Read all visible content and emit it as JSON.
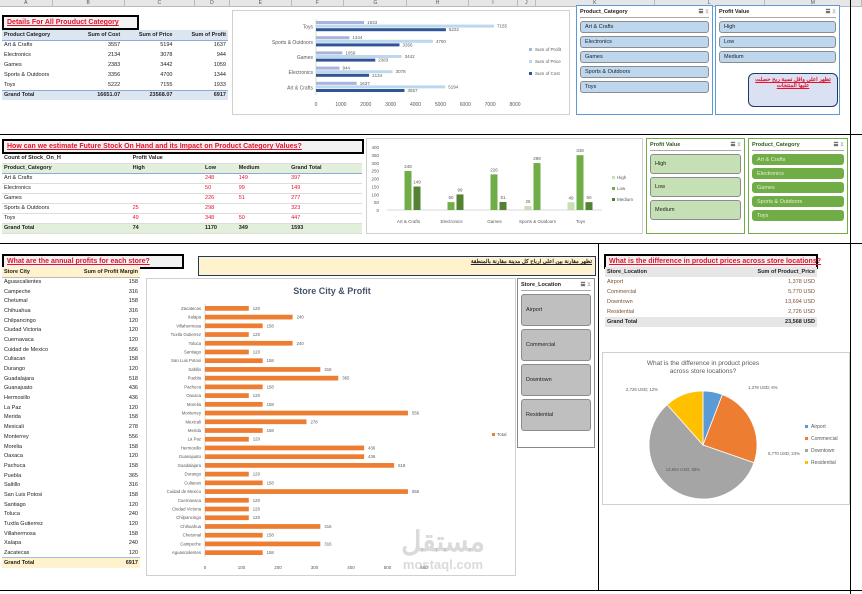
{
  "columns": [
    "A",
    "B",
    "C",
    "D",
    "E",
    "F",
    "G",
    "H",
    "I",
    "J",
    "K",
    "L",
    "M"
  ],
  "section1": {
    "title": "Details For All Prouduct Category",
    "headers": [
      "Product Category",
      "Sum of Cost",
      "Sum of Price",
      "Sum of Profit"
    ],
    "rows": [
      [
        "Art & Crafts",
        "3557",
        "5194",
        "1637"
      ],
      [
        "Electronics",
        "2134",
        "3078",
        "944"
      ],
      [
        "Games",
        "2383",
        "3442",
        "1059"
      ],
      [
        "Sports & Outdoors",
        "3356",
        "4700",
        "1344"
      ],
      [
        "Toys",
        "5222",
        "7155",
        "1933"
      ]
    ],
    "grand_total": [
      "Grand Total",
      "16651.07",
      "23568.07",
      "6917"
    ],
    "slicer_category": {
      "title": "Product_Category",
      "items": [
        "Art & Crafts",
        "Electronics",
        "Games",
        "Sports & Outdoors",
        "Toys"
      ]
    },
    "slicer_profit": {
      "title": "Profit Value",
      "items": [
        "High",
        "Low",
        "Medium"
      ]
    },
    "callout": "تظهر اعلى واقل نسبة ربح حصلت عليها المنتجات"
  },
  "section2": {
    "title": "How can we estimate Future Stock On Hand and its Impact on Product Category Values?",
    "filter_row": [
      "Count of Stock_On_H",
      "Profit Value"
    ],
    "headers": [
      "Product_Category",
      "High",
      "Low",
      "Medium",
      "Grand Total"
    ],
    "rows": [
      [
        "Art & Crafts",
        "",
        "248",
        "149",
        "397"
      ],
      [
        "Electronics",
        "",
        "50",
        "99",
        "149"
      ],
      [
        "Games",
        "",
        "226",
        "51",
        "277"
      ],
      [
        "Sports & Outdoors",
        "25",
        "298",
        "",
        "323"
      ],
      [
        "Toys",
        "49",
        "348",
        "50",
        "447"
      ]
    ],
    "grand_total": [
      "Grand Total",
      "74",
      "1170",
      "349",
      "1593"
    ],
    "slicer_profit": {
      "title": "Profit Value",
      "items": [
        "High",
        "Low",
        "Medium"
      ]
    },
    "slicer_category": {
      "title": "Product_Category",
      "items": [
        "Art & Crafts",
        "Electronics",
        "Games",
        "Sports & Outdoors",
        "Toys"
      ]
    }
  },
  "section3": {
    "title": "What are the annual profits for each store?",
    "banner": "تظهر مقارنة بين اعلى ارباح كل مدينة مقارنة بالمنطقة",
    "headers": [
      "Store City",
      "Sum of Profit Margin"
    ],
    "rows": [
      [
        "Aguascalientes",
        "158"
      ],
      [
        "Campeche",
        "316"
      ],
      [
        "Chetumal",
        "158"
      ],
      [
        "Chihuahua",
        "316"
      ],
      [
        "Chilpancingo",
        "120"
      ],
      [
        "Ciudad Victoria",
        "120"
      ],
      [
        "Cuernavaca",
        "120"
      ],
      [
        "Cuidad de Mexico",
        "556"
      ],
      [
        "Culiacan",
        "158"
      ],
      [
        "Durango",
        "120"
      ],
      [
        "Guadalajara",
        "518"
      ],
      [
        "Guanajuato",
        "436"
      ],
      [
        "Hermosillo",
        "436"
      ],
      [
        "La Paz",
        "120"
      ],
      [
        "Merida",
        "158"
      ],
      [
        "Mexicali",
        "278"
      ],
      [
        "Monterrey",
        "556"
      ],
      [
        "Morelia",
        "158"
      ],
      [
        "Oaxaca",
        "120"
      ],
      [
        "Pachuca",
        "158"
      ],
      [
        "Puebla",
        "365"
      ],
      [
        "Saltillo",
        "316"
      ],
      [
        "San Luis Potosi",
        "158"
      ],
      [
        "Santiago",
        "120"
      ],
      [
        "Toluca",
        "240"
      ],
      [
        "Tuxtla Gutierrez",
        "120"
      ],
      [
        "Villahermosa",
        "158"
      ],
      [
        "Xalapa",
        "240"
      ],
      [
        "Zacatecas",
        "120"
      ]
    ],
    "grand_total": [
      "Grand Total",
      "6917"
    ],
    "slicer_location": {
      "title": "Store_Location",
      "items": [
        "Airport",
        "Commercial",
        "Downtown",
        "Residential"
      ]
    }
  },
  "section4": {
    "title": "What is the difference in product prices across store locations?",
    "headers": [
      "Store_Location",
      "Sum of Product_Price"
    ],
    "rows": [
      [
        "Airport",
        "1,378 USD"
      ],
      [
        "Commercial",
        "5,770 USD"
      ],
      [
        "Downtown",
        "13,694 USD"
      ],
      [
        "Residential",
        "2,726 USD"
      ]
    ],
    "grand_total": [
      "Grand Total",
      "23,568 USD"
    ]
  },
  "watermark": {
    "arabic": "مستقل",
    "latin": "mostaql.com"
  },
  "colors": {
    "profit": "#a9b4dd",
    "price": "#bdd7ee",
    "cost": "#2f5597",
    "high": "#c5e0b4",
    "low": "#70ad47",
    "medium": "#548235",
    "orange": "#ed7d31",
    "airport": "#5b9bd5",
    "commercial": "#ed7d31",
    "downtown": "#a5a5a5",
    "residential": "#ffc000"
  },
  "chart_data": [
    {
      "type": "bar",
      "orientation": "horizontal",
      "categories": [
        "Art & Crafts",
        "Electronics",
        "Games",
        "Sports & Outdoors",
        "Toys"
      ],
      "series": [
        {
          "name": "Sum of Profit",
          "values": [
            1637,
            944,
            1059,
            1344,
            1933
          ]
        },
        {
          "name": "Sum of Price",
          "values": [
            5194,
            3078,
            3442,
            4700,
            7155
          ]
        },
        {
          "name": "Sum of Cost",
          "values": [
            3557,
            2134,
            2383,
            3356,
            5222
          ]
        }
      ],
      "xlim": [
        0,
        8000
      ],
      "xticks": [
        0,
        1000,
        2000,
        3000,
        4000,
        5000,
        6000,
        7000,
        8000
      ],
      "legend": "right"
    },
    {
      "type": "bar",
      "categories": [
        "Art & Crafts",
        "Electronics",
        "Games",
        "Sports & Outdoors",
        "Toys"
      ],
      "series": [
        {
          "name": "High",
          "values": [
            null,
            null,
            null,
            25,
            49
          ]
        },
        {
          "name": "Low",
          "values": [
            248,
            50,
            226,
            298,
            348
          ]
        },
        {
          "name": "Medium",
          "values": [
            149,
            99,
            51,
            null,
            50
          ]
        }
      ],
      "ylim": [
        0,
        400
      ],
      "yticks": [
        0,
        50,
        100,
        150,
        200,
        250,
        300,
        350,
        400
      ],
      "legend": "right"
    },
    {
      "type": "bar",
      "orientation": "horizontal",
      "title": "Store City & Profit",
      "categories": [
        "Zacatecas",
        "Xalapa",
        "Villahermosa",
        "Tuxtla Gutierrez",
        "Toluca",
        "Santiago",
        "San Luis Potosi",
        "Saltillo",
        "Puebla",
        "Pachuca",
        "Oaxaca",
        "Morelia",
        "Monterrey",
        "Mexicali",
        "Merida",
        "La Paz",
        "Hermosillo",
        "Guanajuato",
        "Guadalajara",
        "Durango",
        "Culiacan",
        "Cuidad de Mexico",
        "Cuernavaca",
        "Ciudad Victoria",
        "Chilpancingo",
        "Chihuahua",
        "Chetumal",
        "Campeche",
        "Aguascalientes"
      ],
      "series": [
        {
          "name": "Total",
          "values": [
            120,
            240,
            158,
            120,
            240,
            120,
            158,
            316,
            365,
            158,
            120,
            158,
            556,
            278,
            158,
            120,
            436,
            436,
            518,
            120,
            158,
            556,
            120,
            120,
            120,
            316,
            158,
            316,
            158
          ]
        }
      ],
      "xlim": [
        0,
        600
      ],
      "xticks": [
        0,
        100,
        200,
        300,
        400,
        500,
        600
      ],
      "legend": "right"
    },
    {
      "type": "pie",
      "title": "What is the difference in product prices across store locations?",
      "categories": [
        "Airport",
        "Commercial",
        "Downtown",
        "Residential"
      ],
      "values": [
        1378,
        5770,
        13694,
        2726
      ],
      "labels": [
        "1,378 USD; 6%",
        "5,770 USD; 24%",
        "13,694 USD; 58%",
        "2,726 USD; 12%"
      ],
      "legend": "right"
    }
  ]
}
